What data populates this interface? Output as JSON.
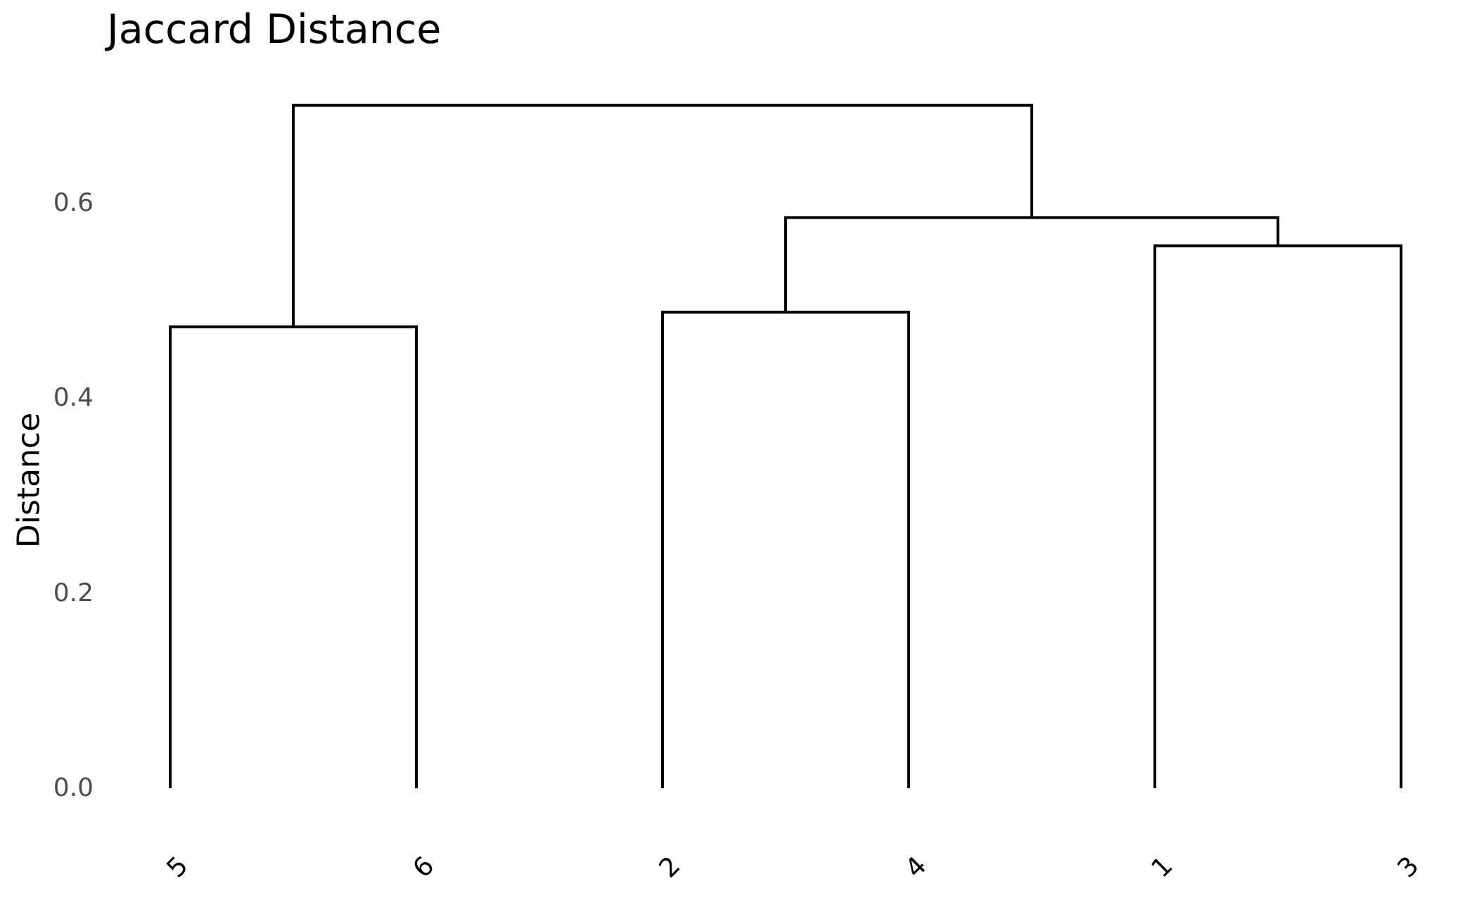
{
  "title": "Jaccard Distance",
  "y_axis": {
    "label": "Distance",
    "ticks": [
      {
        "label": "0.0",
        "value": 0.0
      },
      {
        "label": "0.2",
        "value": 0.2
      },
      {
        "label": "0.4",
        "value": 0.4
      },
      {
        "label": "0.6",
        "value": 0.6
      }
    ],
    "tick_color": "#4d4d4d",
    "label_color": "#000000"
  },
  "x_axis": {
    "leaf_labels": [
      "5",
      "6",
      "2",
      "4",
      "1",
      "3"
    ],
    "tick_color": "#000000",
    "rotation_deg": 45
  },
  "chart_data": {
    "type": "dendrogram",
    "title": "Jaccard Distance",
    "ylabel": "Distance",
    "yticks": [
      0.0,
      0.2,
      0.4,
      0.6
    ],
    "ylim": [
      0.0,
      0.73
    ],
    "grid": false,
    "legend": false,
    "leaf_order": [
      "5",
      "6",
      "2",
      "4",
      "1",
      "3"
    ],
    "line_color": "#000000",
    "merges": [
      {
        "id": "m-5-6",
        "children": [
          "leaf-5",
          "leaf-6"
        ],
        "height": 0.473
      },
      {
        "id": "m-2-4",
        "children": [
          "leaf-2",
          "leaf-4"
        ],
        "height": 0.488
      },
      {
        "id": "m-1-3",
        "children": [
          "leaf-1",
          "leaf-3"
        ],
        "height": 0.556
      },
      {
        "id": "m-24-13",
        "children": [
          "m-2-4",
          "m-1-3"
        ],
        "height": 0.585
      },
      {
        "id": "root",
        "children": [
          "m-5-6",
          "m-24-13"
        ],
        "height": 0.7
      }
    ]
  }
}
